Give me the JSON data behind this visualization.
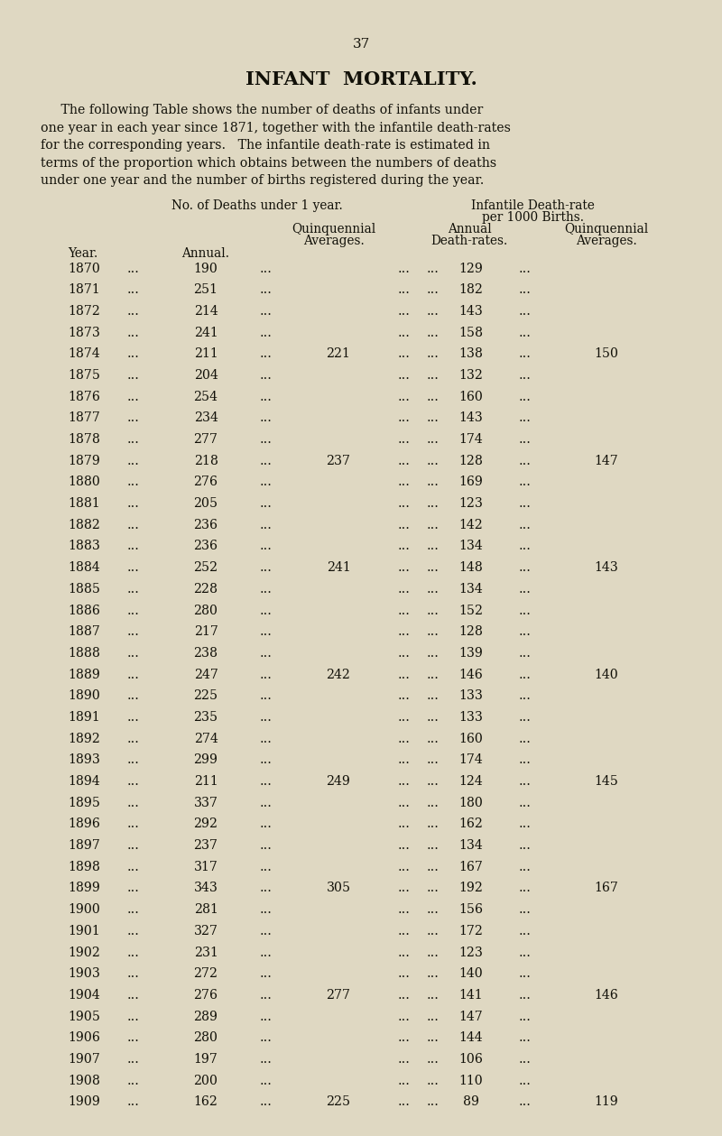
{
  "page_number": "37",
  "title": "INFANT  MORTALITY.",
  "intro_text": [
    "     The following Table shows the number of deaths of infants under",
    "one year in each year since 1871, together with the infantile death-rates",
    "for the corresponding years.   The infantile death-rate is estimated in",
    "terms of the proportion which obtains between the numbers of deaths",
    "under one year and the number of births registered during the year."
  ],
  "col_header_1a": "No. of Deaths under 1 year.",
  "col_header_2a": "Infantile Death-rate",
  "col_header_2b": "per 1000 Births.",
  "col_header_annual1": "Annual.",
  "col_header_quinq1": "Quinquennial",
  "col_header_quinq1b": "Averages.",
  "col_header_annual2": "Annual",
  "col_header_annual2b": "Death-rates.",
  "col_header_quinq2": "Quinquennial",
  "col_header_quinq2b": "Averages.",
  "col_year_label": "Year.",
  "rows": [
    {
      "year": 1870,
      "annual": 190,
      "quinq_deaths": null,
      "annual_rate": 129,
      "quinq_rate": null
    },
    {
      "year": 1871,
      "annual": 251,
      "quinq_deaths": null,
      "annual_rate": 182,
      "quinq_rate": null
    },
    {
      "year": 1872,
      "annual": 214,
      "quinq_deaths": null,
      "annual_rate": 143,
      "quinq_rate": null
    },
    {
      "year": 1873,
      "annual": 241,
      "quinq_deaths": null,
      "annual_rate": 158,
      "quinq_rate": null
    },
    {
      "year": 1874,
      "annual": 211,
      "quinq_deaths": 221,
      "annual_rate": 138,
      "quinq_rate": 150
    },
    {
      "year": 1875,
      "annual": 204,
      "quinq_deaths": null,
      "annual_rate": 132,
      "quinq_rate": null
    },
    {
      "year": 1876,
      "annual": 254,
      "quinq_deaths": null,
      "annual_rate": 160,
      "quinq_rate": null
    },
    {
      "year": 1877,
      "annual": 234,
      "quinq_deaths": null,
      "annual_rate": 143,
      "quinq_rate": null
    },
    {
      "year": 1878,
      "annual": 277,
      "quinq_deaths": null,
      "annual_rate": 174,
      "quinq_rate": null
    },
    {
      "year": 1879,
      "annual": 218,
      "quinq_deaths": 237,
      "annual_rate": 128,
      "quinq_rate": 147
    },
    {
      "year": 1880,
      "annual": 276,
      "quinq_deaths": null,
      "annual_rate": 169,
      "quinq_rate": null
    },
    {
      "year": 1881,
      "annual": 205,
      "quinq_deaths": null,
      "annual_rate": 123,
      "quinq_rate": null
    },
    {
      "year": 1882,
      "annual": 236,
      "quinq_deaths": null,
      "annual_rate": 142,
      "quinq_rate": null
    },
    {
      "year": 1883,
      "annual": 236,
      "quinq_deaths": null,
      "annual_rate": 134,
      "quinq_rate": null
    },
    {
      "year": 1884,
      "annual": 252,
      "quinq_deaths": 241,
      "annual_rate": 148,
      "quinq_rate": 143
    },
    {
      "year": 1885,
      "annual": 228,
      "quinq_deaths": null,
      "annual_rate": 134,
      "quinq_rate": null
    },
    {
      "year": 1886,
      "annual": 280,
      "quinq_deaths": null,
      "annual_rate": 152,
      "quinq_rate": null
    },
    {
      "year": 1887,
      "annual": 217,
      "quinq_deaths": null,
      "annual_rate": 128,
      "quinq_rate": null
    },
    {
      "year": 1888,
      "annual": 238,
      "quinq_deaths": null,
      "annual_rate": 139,
      "quinq_rate": null
    },
    {
      "year": 1889,
      "annual": 247,
      "quinq_deaths": 242,
      "annual_rate": 146,
      "quinq_rate": 140
    },
    {
      "year": 1890,
      "annual": 225,
      "quinq_deaths": null,
      "annual_rate": 133,
      "quinq_rate": null
    },
    {
      "year": 1891,
      "annual": 235,
      "quinq_deaths": null,
      "annual_rate": 133,
      "quinq_rate": null
    },
    {
      "year": 1892,
      "annual": 274,
      "quinq_deaths": null,
      "annual_rate": 160,
      "quinq_rate": null
    },
    {
      "year": 1893,
      "annual": 299,
      "quinq_deaths": null,
      "annual_rate": 174,
      "quinq_rate": null
    },
    {
      "year": 1894,
      "annual": 211,
      "quinq_deaths": 249,
      "annual_rate": 124,
      "quinq_rate": 145
    },
    {
      "year": 1895,
      "annual": 337,
      "quinq_deaths": null,
      "annual_rate": 180,
      "quinq_rate": null
    },
    {
      "year": 1896,
      "annual": 292,
      "quinq_deaths": null,
      "annual_rate": 162,
      "quinq_rate": null
    },
    {
      "year": 1897,
      "annual": 237,
      "quinq_deaths": null,
      "annual_rate": 134,
      "quinq_rate": null
    },
    {
      "year": 1898,
      "annual": 317,
      "quinq_deaths": null,
      "annual_rate": 167,
      "quinq_rate": null
    },
    {
      "year": 1899,
      "annual": 343,
      "quinq_deaths": 305,
      "annual_rate": 192,
      "quinq_rate": 167
    },
    {
      "year": 1900,
      "annual": 281,
      "quinq_deaths": null,
      "annual_rate": 156,
      "quinq_rate": null
    },
    {
      "year": 1901,
      "annual": 327,
      "quinq_deaths": null,
      "annual_rate": 172,
      "quinq_rate": null
    },
    {
      "year": 1902,
      "annual": 231,
      "quinq_deaths": null,
      "annual_rate": 123,
      "quinq_rate": null
    },
    {
      "year": 1903,
      "annual": 272,
      "quinq_deaths": null,
      "annual_rate": 140,
      "quinq_rate": null
    },
    {
      "year": 1904,
      "annual": 276,
      "quinq_deaths": 277,
      "annual_rate": 141,
      "quinq_rate": 146
    },
    {
      "year": 1905,
      "annual": 289,
      "quinq_deaths": null,
      "annual_rate": 147,
      "quinq_rate": null
    },
    {
      "year": 1906,
      "annual": 280,
      "quinq_deaths": null,
      "annual_rate": 144,
      "quinq_rate": null
    },
    {
      "year": 1907,
      "annual": 197,
      "quinq_deaths": null,
      "annual_rate": 106,
      "quinq_rate": null
    },
    {
      "year": 1908,
      "annual": 200,
      "quinq_deaths": null,
      "annual_rate": 110,
      "quinq_rate": null
    },
    {
      "year": 1909,
      "annual": 162,
      "quinq_deaths": 225,
      "annual_rate": 89,
      "quinq_rate": 119
    }
  ],
  "bg_color": "#dfd8c2",
  "text_color": "#111008",
  "font_size_title": 15,
  "font_size_body": 10.2,
  "font_size_page": 11,
  "font_size_header": 9.8
}
